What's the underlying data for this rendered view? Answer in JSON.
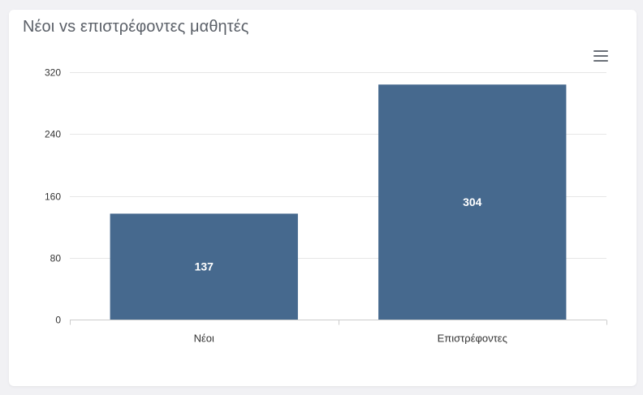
{
  "card": {
    "title": "Νέοι vs επιστρέφοντες μαθητές"
  },
  "chart_data": {
    "type": "bar",
    "title": "Νέοι vs επιστρέφοντες μαθητές",
    "categories": [
      "Νέοι",
      "Επιστρέφοντες"
    ],
    "values": [
      137,
      304
    ],
    "ylim": [
      0,
      320
    ],
    "yticks": [
      0,
      80,
      160,
      240,
      320
    ],
    "grid": true,
    "bar_color": "#46698e",
    "grid_color": "#e6e6e6",
    "axis_color": "#cccccc",
    "data_labels": true
  },
  "toolbar": {
    "menu_icon": "hamburger-menu-icon"
  }
}
